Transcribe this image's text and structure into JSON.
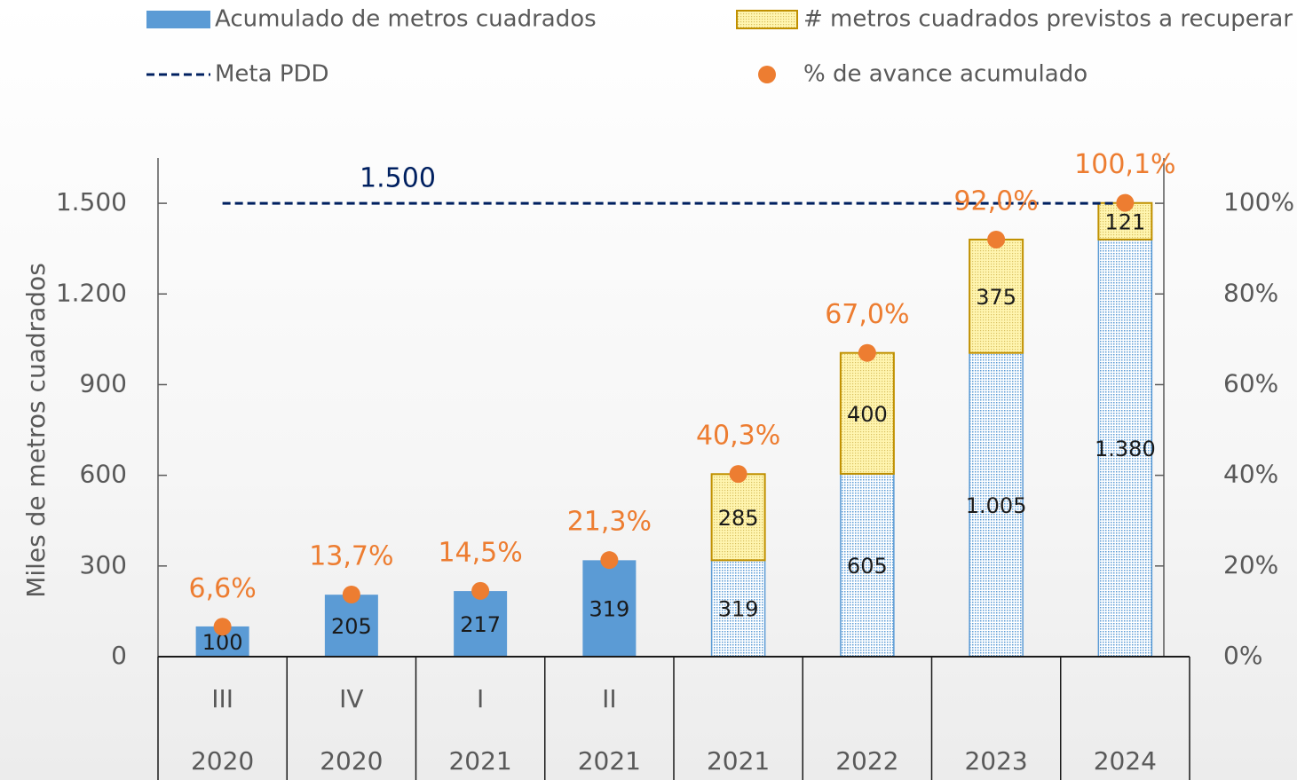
{
  "chart_data": {
    "type": "stacked-bar",
    "y_axis_label": "Miles de metros cuadrados",
    "subcategories": [
      "III",
      "IV",
      "I",
      "II",
      null,
      null,
      null,
      null
    ],
    "categories": [
      "2020",
      "2020",
      "2021",
      "2021",
      "2021",
      "2022",
      "2023",
      "2024"
    ],
    "series": [
      {
        "name": "Acumulado de metros cuadrados",
        "color": "#5b9bd5",
        "values": [
          100,
          205,
          217,
          319,
          319,
          605,
          1005,
          1380
        ],
        "value_labels": [
          "100",
          "205",
          "217",
          "319",
          "319",
          "605",
          "1.005",
          "1.380"
        ],
        "projected": [
          false,
          false,
          false,
          false,
          true,
          true,
          true,
          true
        ]
      },
      {
        "name": "# metros cuadrados previstos a recuperar",
        "color": "#c09000",
        "fill": "#fff5b0",
        "values": [
          null,
          null,
          null,
          null,
          285,
          400,
          375,
          121
        ],
        "value_labels": [
          null,
          null,
          null,
          null,
          "285",
          "400",
          "375",
          "121"
        ]
      },
      {
        "name": "% de avance acumulado",
        "color": "#ed7d31",
        "axis": "y2",
        "values": [
          6.6,
          13.7,
          14.5,
          21.3,
          40.3,
          67.0,
          92.0,
          100.1
        ],
        "value_labels": [
          "6,6%",
          "13,7%",
          "14,5%",
          "21,3%",
          "40,3%",
          "67,0%",
          "92,0%",
          "100,1%"
        ]
      }
    ],
    "target": {
      "name": "Meta PDD",
      "value": 1500,
      "label": "1.500",
      "color": "#002060"
    },
    "ylim": [
      0,
      1650
    ],
    "yticks": [
      0,
      300,
      600,
      900,
      {
        "value": 1200,
        "label": "1.200"
      },
      {
        "value": 1500,
        "label": "1.500"
      }
    ],
    "y2lim": [
      0,
      110
    ],
    "y2ticks": [
      {
        "value": 0,
        "label": "0%"
      },
      {
        "value": 20,
        "label": "20%"
      },
      {
        "value": 40,
        "label": "40%"
      },
      {
        "value": 60,
        "label": "60%"
      },
      {
        "value": 80,
        "label": "80%"
      },
      {
        "value": 100,
        "label": "100%"
      }
    ]
  }
}
